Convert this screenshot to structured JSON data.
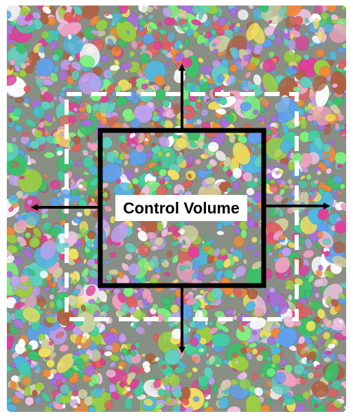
{
  "diagram": {
    "control_volume_label": "Control Volume",
    "expansion_directions": [
      "up",
      "left",
      "right",
      "down"
    ],
    "particle_field": {
      "description_shape": "ellipsoid particles",
      "palette": [
        "#e0409a",
        "#3cc06a",
        "#4fb8e0",
        "#f0e060",
        "#a86ee0",
        "#f08a3a",
        "#5fd0c0",
        "#e06060",
        "#9ad040",
        "#ffffff",
        "#c0a0f0",
        "#f0a0c0",
        "#60a0f0",
        "#d0d0a0",
        "#40d0a0",
        "#b06040",
        "#f0c0e0",
        "#80f080"
      ]
    },
    "colors": {
      "solid_box": "#000000",
      "dashed_box": "#ffffff",
      "arrows": "#000000",
      "label_background": "#ffffff",
      "label_text": "#000000"
    }
  }
}
